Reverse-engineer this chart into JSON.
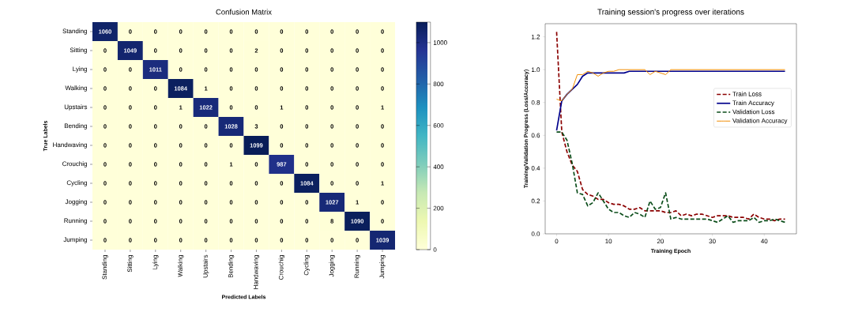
{
  "chart_data": [
    {
      "type": "heatmap",
      "title": "Confusion Matrix",
      "xlabel": "Predicted Labels",
      "ylabel": "True Labels",
      "categories": [
        "Standing",
        "Sitting",
        "Lying",
        "Walking",
        "Upstairs",
        "Bending",
        "Handwaving",
        "Crouchig",
        "Cycling",
        "Jogging",
        "Running",
        "Jumping"
      ],
      "y_categories": [
        "Standing",
        "Sitting",
        "Lying",
        "Walking",
        "Upstairs",
        "Bending",
        "Handwaving",
        "Crouchig",
        "Cycling",
        "Jogging",
        "Running",
        "Jumping"
      ],
      "cells": [
        [
          1060,
          0,
          0,
          0,
          0,
          0,
          0,
          0,
          0,
          0,
          0,
          0
        ],
        [
          0,
          1049,
          0,
          0,
          0,
          0,
          2,
          0,
          0,
          0,
          0,
          0
        ],
        [
          0,
          0,
          1011,
          0,
          0,
          0,
          0,
          0,
          0,
          0,
          0,
          0
        ],
        [
          0,
          0,
          0,
          1084,
          1,
          0,
          0,
          0,
          0,
          0,
          0,
          0
        ],
        [
          0,
          0,
          0,
          1,
          1022,
          0,
          0,
          1,
          0,
          0,
          0,
          1
        ],
        [
          0,
          0,
          0,
          0,
          0,
          1028,
          3,
          0,
          0,
          0,
          0,
          0
        ],
        [
          0,
          0,
          0,
          0,
          0,
          0,
          1099,
          0,
          0,
          0,
          0,
          0
        ],
        [
          0,
          0,
          0,
          0,
          0,
          1,
          0,
          987,
          0,
          0,
          0,
          0
        ],
        [
          0,
          0,
          0,
          0,
          0,
          0,
          0,
          0,
          1084,
          0,
          0,
          1
        ],
        [
          0,
          0,
          0,
          0,
          0,
          0,
          0,
          0,
          0,
          1027,
          1,
          0
        ],
        [
          0,
          0,
          0,
          0,
          0,
          0,
          0,
          0,
          0,
          8,
          1090,
          0
        ],
        [
          0,
          0,
          0,
          0,
          0,
          0,
          0,
          0,
          0,
          0,
          0,
          1039
        ]
      ],
      "data_labels": true,
      "clim": [
        0,
        1099
      ],
      "cticks": [
        0,
        200,
        400,
        600,
        800,
        1000
      ]
    },
    {
      "type": "line",
      "title": "Training session's progress over iterations",
      "xlabel": "Training Epoch",
      "ylabel": "Training/Validation Progress (Loss/Accuracy)",
      "x": [
        0,
        1,
        2,
        3,
        4,
        5,
        6,
        7,
        8,
        9,
        10,
        11,
        12,
        13,
        14,
        15,
        16,
        17,
        18,
        19,
        20,
        21,
        22,
        23,
        24,
        25,
        26,
        27,
        28,
        29,
        30,
        31,
        32,
        33,
        34,
        35,
        36,
        37,
        38,
        39,
        40,
        41,
        42,
        43,
        44
      ],
      "series": [
        {
          "name": "Train Loss",
          "color": "#8b0000",
          "line_style": "dashed",
          "values": [
            1.23,
            0.62,
            0.5,
            0.42,
            0.38,
            0.27,
            0.24,
            0.23,
            0.21,
            0.21,
            0.19,
            0.18,
            0.18,
            0.17,
            0.15,
            0.15,
            0.16,
            0.14,
            0.14,
            0.14,
            0.14,
            0.13,
            0.13,
            0.14,
            0.11,
            0.12,
            0.11,
            0.12,
            0.12,
            0.11,
            0.1,
            0.11,
            0.11,
            0.11,
            0.1,
            0.1,
            0.1,
            0.09,
            0.12,
            0.1,
            0.09,
            0.09,
            0.08,
            0.09,
            0.09
          ]
        },
        {
          "name": "Train Accuracy",
          "color": "#00008b",
          "line_style": "solid",
          "values": [
            0.63,
            0.81,
            0.85,
            0.88,
            0.91,
            0.96,
            0.98,
            0.98,
            0.98,
            0.98,
            0.98,
            0.98,
            0.98,
            0.98,
            0.99,
            0.99,
            0.99,
            0.99,
            0.99,
            0.99,
            0.99,
            0.99,
            0.99,
            0.99,
            0.99,
            0.99,
            0.99,
            0.99,
            0.99,
            0.99,
            0.99,
            0.99,
            0.99,
            0.99,
            0.99,
            0.99,
            0.99,
            0.99,
            0.99,
            0.99,
            0.99,
            0.99,
            0.99,
            0.99,
            0.99
          ]
        },
        {
          "name": "Validation Loss",
          "color": "#0b4d1a",
          "line_style": "dashed",
          "values": [
            0.62,
            0.62,
            0.57,
            0.43,
            0.25,
            0.24,
            0.17,
            0.19,
            0.25,
            0.2,
            0.15,
            0.13,
            0.13,
            0.11,
            0.1,
            0.13,
            0.12,
            0.1,
            0.2,
            0.15,
            0.16,
            0.25,
            0.09,
            0.1,
            0.09,
            0.09,
            0.09,
            0.09,
            0.09,
            0.09,
            0.08,
            0.07,
            0.09,
            0.11,
            0.07,
            0.08,
            0.08,
            0.08,
            0.1,
            0.07,
            0.08,
            0.08,
            0.09,
            0.08,
            0.07
          ]
        },
        {
          "name": "Validation Accuracy",
          "color": "#f08c00",
          "line_style": "solid",
          "values": [
            0.82,
            0.81,
            0.85,
            0.88,
            0.97,
            0.97,
            0.99,
            0.98,
            0.96,
            0.98,
            0.99,
            0.99,
            1.0,
            1.0,
            1.0,
            1.0,
            1.0,
            1.0,
            0.97,
            0.99,
            0.98,
            0.97,
            1.0,
            1.0,
            1.0,
            1.0,
            1.0,
            1.0,
            1.0,
            1.0,
            1.0,
            1.0,
            1.0,
            1.0,
            1.0,
            1.0,
            1.0,
            1.0,
            1.0,
            1.0,
            1.0,
            1.0,
            1.0,
            1.0,
            1.0
          ]
        }
      ],
      "xlim": [
        -2.2,
        46.2
      ],
      "ylim": [
        0,
        1.28
      ],
      "xticks": [
        0,
        10,
        20,
        30,
        40
      ],
      "yticks": [
        {
          "value": 0,
          "label": "0.0"
        },
        0.2,
        0.4,
        0.6,
        0.8,
        {
          "value": 1,
          "label": "1.0"
        },
        1.2
      ],
      "grid": false,
      "legend": "center right"
    }
  ]
}
